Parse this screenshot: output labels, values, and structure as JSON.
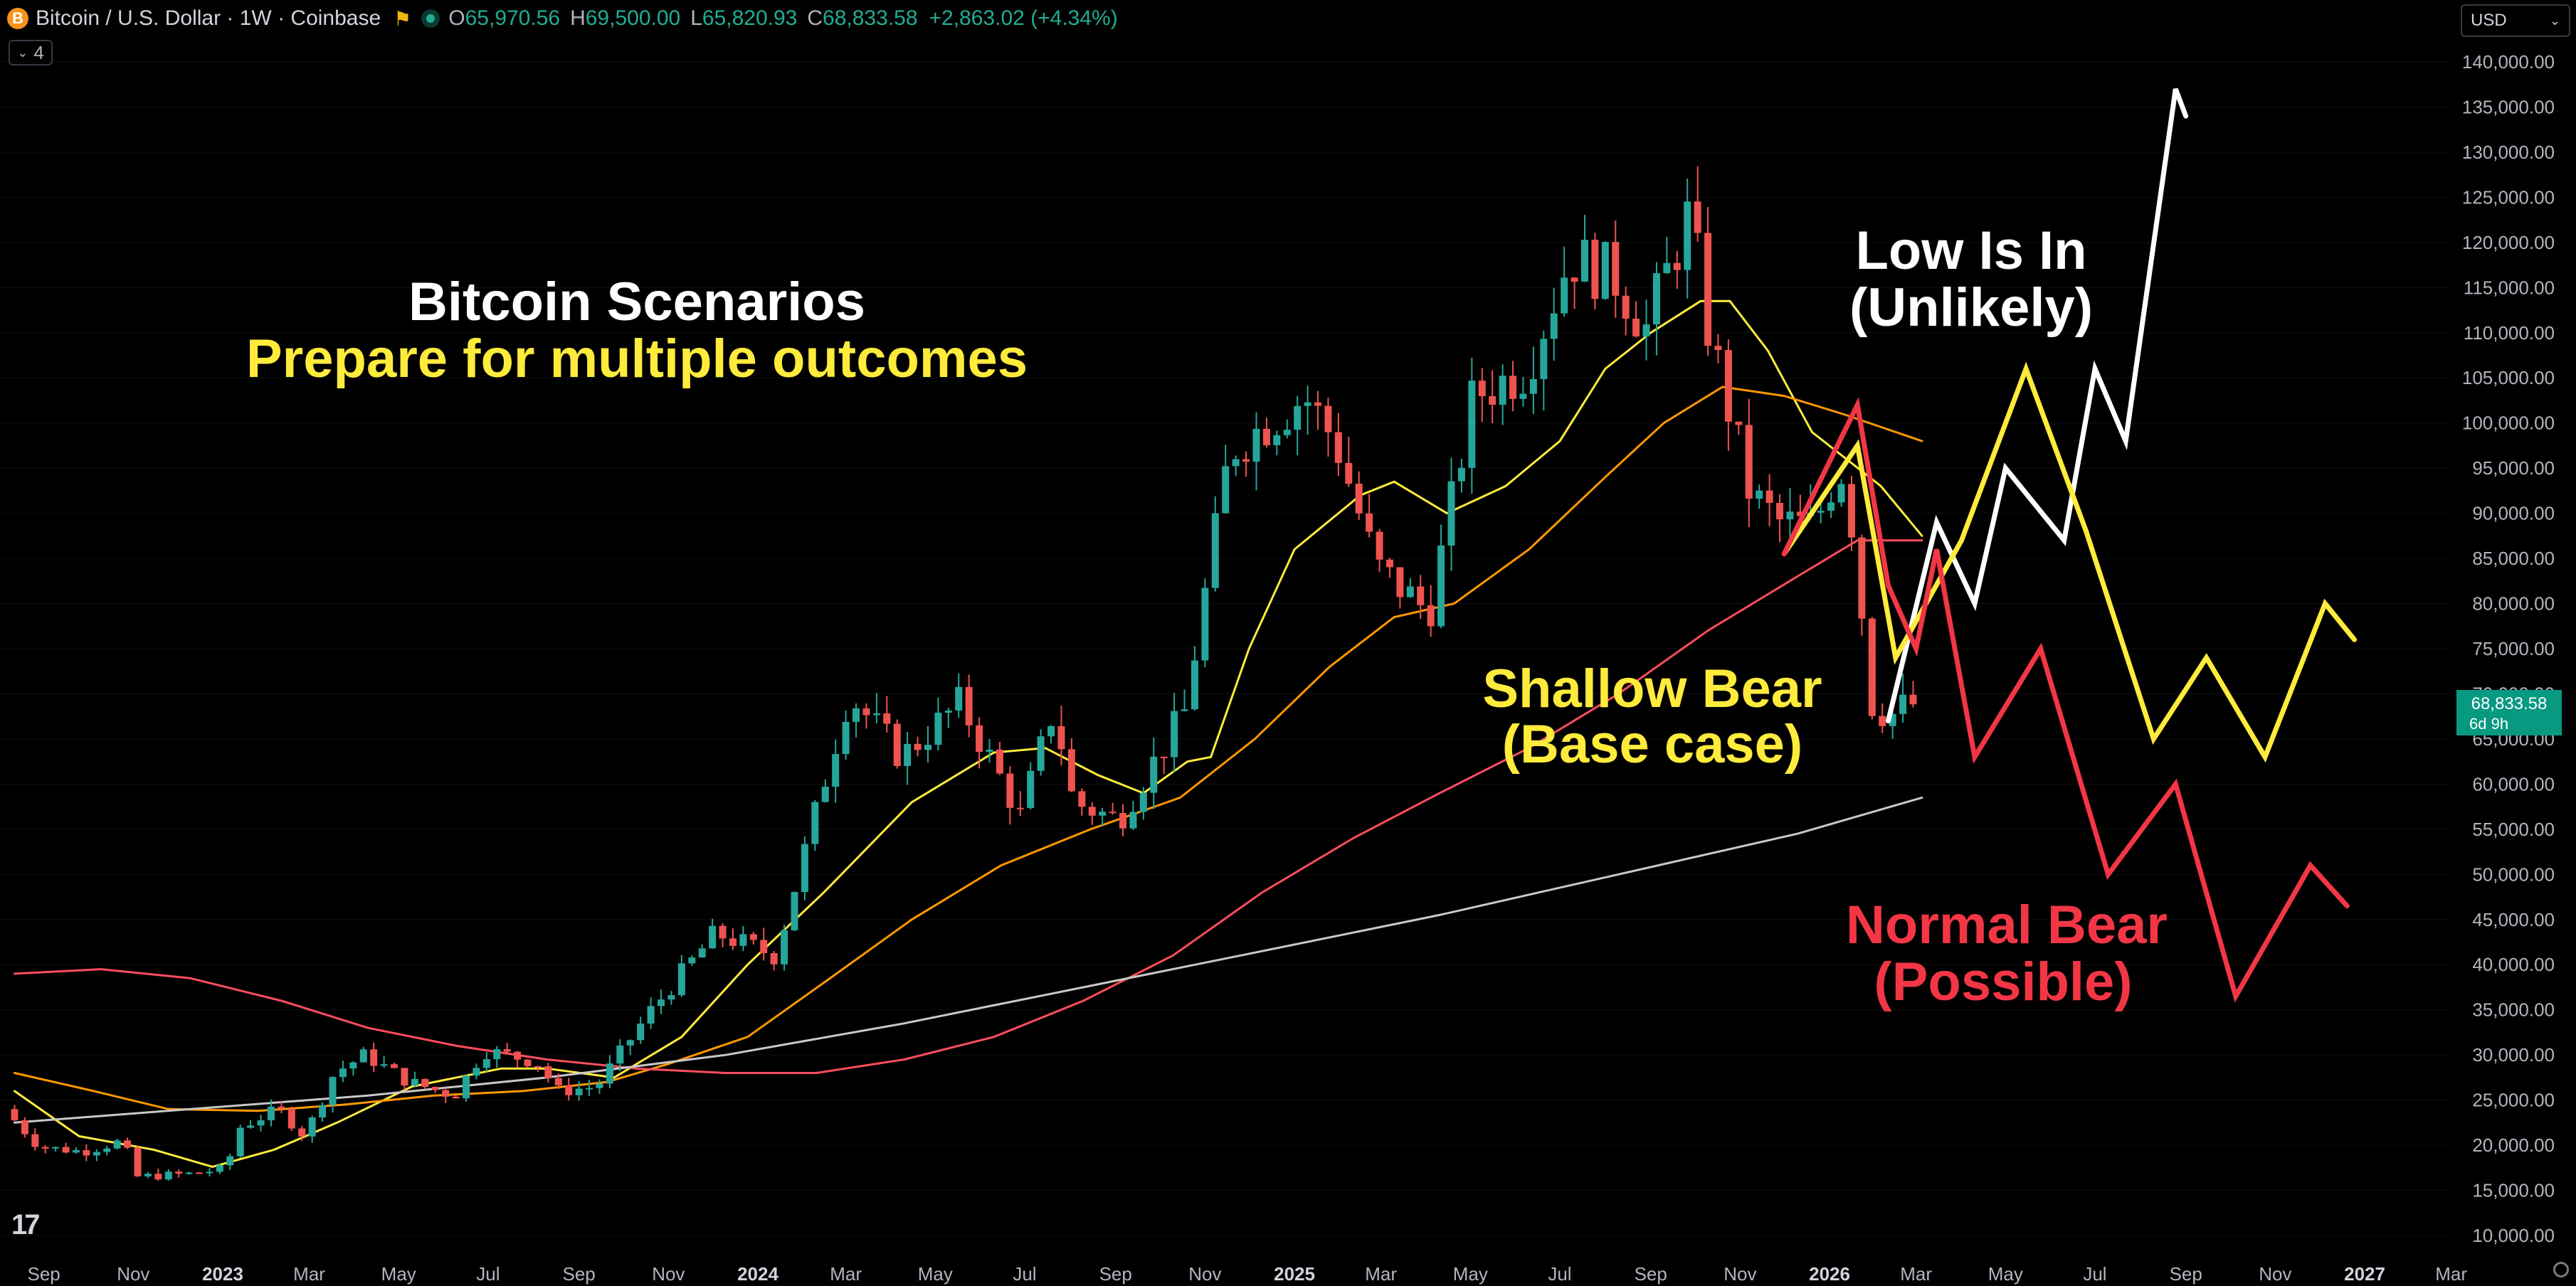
{
  "header": {
    "symbol": "Bitcoin / U.S. Dollar · 1W · Coinbase",
    "coin_icon": "B",
    "open_label": "O",
    "open": "65,970.56",
    "high_label": "H",
    "high": "69,500.00",
    "low_label": "L",
    "low": "65,820.93",
    "close_label": "C",
    "close": "68,833.58",
    "change": "+2,863.02 (+4.34%)",
    "indicator_count": "4",
    "currency": "USD"
  },
  "colors": {
    "up": "#26a69a",
    "down": "#ef5350",
    "sma_fast": "#ffeb3b",
    "sma_mid": "#ff9800",
    "sma_slow": "#ff4d5e",
    "sma_200": "#c8c8c8",
    "scenario_white": "#ffffff",
    "scenario_yellow": "#ffeb3b",
    "scenario_red": "#f23645"
  },
  "chart_data": {
    "type": "candlestick",
    "timeframe": "1W",
    "yaxis": {
      "range": [
        8000,
        145000
      ],
      "ticks": [
        "140,000.00",
        "135,000.00",
        "130,000.00",
        "125,000.00",
        "120,000.00",
        "115,000.00",
        "110,000.00",
        "105,000.00",
        "100,000.00",
        "95,000.00",
        "90,000.00",
        "85,000.00",
        "80,000.00",
        "75,000.00",
        "70,000.00",
        "65,000.00",
        "60,000.00",
        "55,000.00",
        "50,000.00",
        "45,000.00",
        "40,000.00",
        "35,000.00",
        "30,000.00",
        "25,000.00",
        "20,000.00",
        "15,000.00",
        "10,000.00"
      ]
    },
    "xaxis": {
      "ticks": [
        {
          "date": "2022-09-01",
          "label": "Sep",
          "bold": false
        },
        {
          "date": "2022-11-01",
          "label": "Nov",
          "bold": false
        },
        {
          "date": "2023-01-01",
          "label": "2023",
          "bold": true
        },
        {
          "date": "2023-03-01",
          "label": "Mar",
          "bold": false
        },
        {
          "date": "2023-05-01",
          "label": "May",
          "bold": false
        },
        {
          "date": "2023-07-01",
          "label": "Jul",
          "bold": false
        },
        {
          "date": "2023-09-01",
          "label": "Sep",
          "bold": false
        },
        {
          "date": "2023-11-01",
          "label": "Nov",
          "bold": false
        },
        {
          "date": "2024-01-01",
          "label": "2024",
          "bold": true
        },
        {
          "date": "2024-03-01",
          "label": "Mar",
          "bold": false
        },
        {
          "date": "2024-05-01",
          "label": "May",
          "bold": false
        },
        {
          "date": "2024-07-01",
          "label": "Jul",
          "bold": false
        },
        {
          "date": "2024-09-01",
          "label": "Sep",
          "bold": false
        },
        {
          "date": "2024-11-01",
          "label": "Nov",
          "bold": false
        },
        {
          "date": "2025-01-01",
          "label": "2025",
          "bold": true
        },
        {
          "date": "2025-03-01",
          "label": "Mar",
          "bold": false
        },
        {
          "date": "2025-05-01",
          "label": "May",
          "bold": false
        },
        {
          "date": "2025-07-01",
          "label": "Jul",
          "bold": false
        },
        {
          "date": "2025-09-01",
          "label": "Sep",
          "bold": false
        },
        {
          "date": "2025-11-01",
          "label": "Nov",
          "bold": false
        },
        {
          "date": "2026-01-01",
          "label": "2026",
          "bold": true
        },
        {
          "date": "2026-03-01",
          "label": "Mar",
          "bold": false
        },
        {
          "date": "2026-05-01",
          "label": "May",
          "bold": false
        },
        {
          "date": "2026-07-01",
          "label": "Jul",
          "bold": false
        },
        {
          "date": "2026-09-01",
          "label": "Sep",
          "bold": false
        },
        {
          "date": "2026-11-01",
          "label": "Nov",
          "bold": false
        },
        {
          "date": "2027-01-01",
          "label": "2027",
          "bold": true
        },
        {
          "date": "2027-03-01",
          "label": "Mar",
          "bold": false
        }
      ]
    },
    "price_anchors": [
      [
        "2022-08-12",
        24000
      ],
      [
        "2022-09-05",
        19800
      ],
      [
        "2022-10-05",
        19300
      ],
      [
        "2022-11-01",
        20500
      ],
      [
        "2022-11-10",
        16500
      ],
      [
        "2022-12-15",
        16800
      ],
      [
        "2023-01-10",
        17400
      ],
      [
        "2023-01-20",
        22000
      ],
      [
        "2023-02-15",
        24000
      ],
      [
        "2023-03-05",
        21000
      ],
      [
        "2023-03-25",
        28000
      ],
      [
        "2023-04-15",
        30000
      ],
      [
        "2023-05-15",
        27000
      ],
      [
        "2023-06-15",
        25500
      ],
      [
        "2023-07-05",
        30500
      ],
      [
        "2023-08-10",
        29300
      ],
      [
        "2023-08-25",
        26000
      ],
      [
        "2023-09-20",
        26500
      ],
      [
        "2023-10-25",
        34500
      ],
      [
        "2023-12-10",
        43500
      ],
      [
        "2024-01-20",
        41000
      ],
      [
        "2024-03-10",
        70000
      ],
      [
        "2024-04-15",
        63000
      ],
      [
        "2024-05-25",
        69000
      ],
      [
        "2024-07-05",
        56500
      ],
      [
        "2024-07-28",
        68500
      ],
      [
        "2024-08-10",
        58000
      ],
      [
        "2024-09-10",
        56000
      ],
      [
        "2024-10-25",
        68000
      ],
      [
        "2024-11-25",
        97000
      ],
      [
        "2024-12-20",
        100000
      ],
      [
        "2025-01-15",
        103000
      ],
      [
        "2025-02-05",
        98000
      ],
      [
        "2025-03-05",
        84000
      ],
      [
        "2025-04-10",
        79000
      ],
      [
        "2025-05-10",
        103000
      ],
      [
        "2025-06-15",
        106000
      ],
      [
        "2025-07-15",
        118500
      ],
      [
        "2025-08-15",
        116000
      ],
      [
        "2025-09-05",
        110500
      ],
      [
        "2025-10-05",
        123500
      ],
      [
        "2025-10-15",
        112000
      ],
      [
        "2025-11-15",
        92000
      ],
      [
        "2025-12-05",
        89000
      ],
      [
        "2025-12-28",
        88500
      ],
      [
        "2026-01-15",
        95500
      ],
      [
        "2026-01-25",
        87500
      ],
      [
        "2026-02-05",
        69000
      ],
      [
        "2026-02-18",
        67500
      ],
      [
        "2026-03-02",
        68833.58
      ]
    ],
    "series": [
      {
        "type": "line",
        "color": "#ffeb3b",
        "points": [
          [
            "2022-08-12",
            26000
          ],
          [
            "2022-09-25",
            21000
          ],
          [
            "2022-11-15",
            19500
          ],
          [
            "2022-12-25",
            17600
          ],
          [
            "2023-02-05",
            19500
          ],
          [
            "2023-03-20",
            22500
          ],
          [
            "2023-05-10",
            26500
          ],
          [
            "2023-07-10",
            28500
          ],
          [
            "2023-08-10",
            28500
          ],
          [
            "2023-09-25",
            27500
          ],
          [
            "2023-11-10",
            32000
          ],
          [
            "2023-12-25",
            40000
          ],
          [
            "2024-02-15",
            48000
          ],
          [
            "2024-04-15",
            58000
          ],
          [
            "2024-06-10",
            63500
          ],
          [
            "2024-07-15",
            64000
          ],
          [
            "2024-08-20",
            61000
          ],
          [
            "2024-09-20",
            59000
          ],
          [
            "2024-10-20",
            62500
          ],
          [
            "2024-11-05",
            63000
          ],
          [
            "2024-12-01",
            75000
          ],
          [
            "2025-01-01",
            86000
          ],
          [
            "2025-02-15",
            92000
          ],
          [
            "2025-03-10",
            93500
          ],
          [
            "2025-04-15",
            90000
          ],
          [
            "2025-05-25",
            93000
          ],
          [
            "2025-07-01",
            98000
          ],
          [
            "2025-08-01",
            106000
          ],
          [
            "2025-09-01",
            110000
          ],
          [
            "2025-10-05",
            113500
          ],
          [
            "2025-10-25",
            113500
          ],
          [
            "2025-11-20",
            108000
          ],
          [
            "2025-12-20",
            99000
          ],
          [
            "2026-02-05",
            93000
          ],
          [
            "2026-03-05",
            87500
          ]
        ]
      },
      {
        "type": "line",
        "color": "#ff9800",
        "points": [
          [
            "2022-08-12",
            28000
          ],
          [
            "2022-10-05",
            26000
          ],
          [
            "2022-11-25",
            24000
          ],
          [
            "2023-01-25",
            23800
          ],
          [
            "2023-03-25",
            24500
          ],
          [
            "2023-05-25",
            25500
          ],
          [
            "2023-07-25",
            26000
          ],
          [
            "2023-09-20",
            27000
          ],
          [
            "2023-11-01",
            29000
          ],
          [
            "2023-12-25",
            32000
          ],
          [
            "2024-02-15",
            38000
          ],
          [
            "2024-04-15",
            45000
          ],
          [
            "2024-06-15",
            51000
          ],
          [
            "2024-08-15",
            55000
          ],
          [
            "2024-10-15",
            58500
          ],
          [
            "2024-12-05",
            65000
          ],
          [
            "2025-01-25",
            73000
          ],
          [
            "2025-03-10",
            78500
          ],
          [
            "2025-04-20",
            80000
          ],
          [
            "2025-06-10",
            86000
          ],
          [
            "2025-08-01",
            94000
          ],
          [
            "2025-09-10",
            100000
          ],
          [
            "2025-10-20",
            104000
          ],
          [
            "2025-12-01",
            103000
          ],
          [
            "2026-01-10",
            101000
          ],
          [
            "2026-03-05",
            98000
          ]
        ]
      },
      {
        "type": "line",
        "color": "#ff4d5e",
        "points": [
          [
            "2022-08-12",
            39000
          ],
          [
            "2022-10-10",
            39500
          ],
          [
            "2022-12-10",
            38500
          ],
          [
            "2023-02-10",
            36000
          ],
          [
            "2023-04-10",
            33000
          ],
          [
            "2023-06-10",
            31000
          ],
          [
            "2023-08-10",
            29500
          ],
          [
            "2023-10-10",
            28500
          ],
          [
            "2023-12-10",
            28000
          ],
          [
            "2024-02-10",
            28000
          ],
          [
            "2024-04-10",
            29500
          ],
          [
            "2024-06-10",
            32000
          ],
          [
            "2024-08-10",
            36000
          ],
          [
            "2024-10-10",
            41000
          ],
          [
            "2024-12-10",
            48000
          ],
          [
            "2025-02-10",
            54000
          ],
          [
            "2025-04-10",
            59000
          ],
          [
            "2025-06-10",
            64000
          ],
          [
            "2025-08-10",
            70000
          ],
          [
            "2025-10-10",
            77000
          ],
          [
            "2025-12-10",
            83000
          ],
          [
            "2026-01-20",
            87000
          ],
          [
            "2026-03-05",
            87000
          ]
        ]
      },
      {
        "type": "line",
        "color": "#c8c8c8",
        "points": [
          [
            "2022-08-12",
            22500
          ],
          [
            "2022-12-10",
            24000
          ],
          [
            "2023-04-10",
            25500
          ],
          [
            "2023-08-10",
            27500
          ],
          [
            "2023-12-10",
            30000
          ],
          [
            "2024-04-10",
            33500
          ],
          [
            "2024-08-10",
            37500
          ],
          [
            "2024-12-10",
            41500
          ],
          [
            "2025-04-10",
            45500
          ],
          [
            "2025-08-10",
            50000
          ],
          [
            "2025-12-10",
            54500
          ],
          [
            "2026-03-05",
            58500
          ]
        ]
      },
      {
        "type": "line",
        "name": "Low Is In (Unlikely)",
        "color": "#ffffff",
        "points": [
          [
            "2026-02-10",
            67000
          ],
          [
            "2026-03-15",
            89000
          ],
          [
            "2026-04-10",
            80000
          ],
          [
            "2026-05-01",
            95000
          ],
          [
            "2026-06-10",
            87000
          ],
          [
            "2026-07-01",
            106000
          ],
          [
            "2026-07-22",
            98000
          ],
          [
            "2026-08-25",
            137000
          ],
          [
            "2026-09-01",
            134000
          ]
        ]
      },
      {
        "type": "line",
        "name": "Shallow Bear (Base case)",
        "color": "#ffeb3b",
        "points": [
          [
            "2025-12-01",
            85500
          ],
          [
            "2026-01-20",
            97500
          ],
          [
            "2026-02-15",
            74000
          ],
          [
            "2026-04-01",
            87000
          ],
          [
            "2026-05-15",
            106000
          ],
          [
            "2026-06-25",
            88000
          ],
          [
            "2026-08-10",
            65000
          ],
          [
            "2026-09-15",
            74000
          ],
          [
            "2026-10-25",
            63000
          ],
          [
            "2026-12-05",
            80000
          ],
          [
            "2026-12-25",
            76000
          ]
        ]
      },
      {
        "type": "line",
        "name": "Normal Bear (Possible)",
        "color": "#f23645",
        "points": [
          [
            "2025-12-01",
            85500
          ],
          [
            "2026-01-20",
            102000
          ],
          [
            "2026-02-10",
            82000
          ],
          [
            "2026-03-01",
            75000
          ],
          [
            "2026-03-15",
            86000
          ],
          [
            "2026-04-10",
            63000
          ],
          [
            "2026-05-25",
            75000
          ],
          [
            "2026-07-10",
            50000
          ],
          [
            "2026-08-25",
            60000
          ],
          [
            "2026-10-05",
            36500
          ],
          [
            "2026-11-25",
            51000
          ],
          [
            "2026-12-20",
            46500
          ]
        ]
      }
    ]
  },
  "annotations": {
    "title": "Bitcoin Scenarios",
    "subtitle": "Prepare for multiple outcomes",
    "low_line1": "Low Is In",
    "low_line2": "(Unlikely)",
    "shallow_line1": "Shallow Bear",
    "shallow_line2": "(Base case)",
    "normal_line1": "Normal Bear",
    "normal_line2": "(Possible)"
  },
  "price_label": {
    "value": "68,833.58",
    "countdown": "6d 9h",
    "color": "#089981"
  },
  "logo": "17"
}
